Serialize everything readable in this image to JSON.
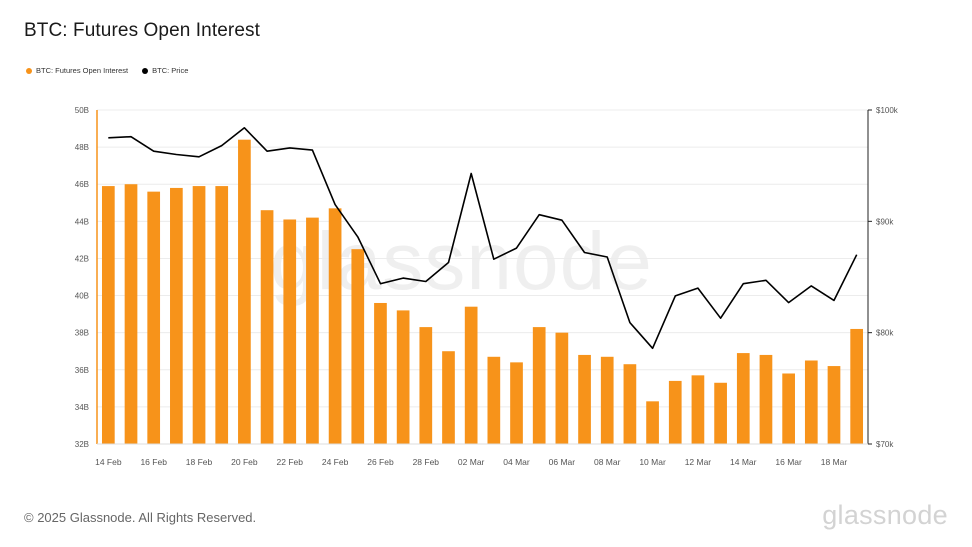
{
  "title": "BTC: Futures Open Interest",
  "legend": [
    {
      "label": "BTC: Futures Open Interest",
      "color": "#f7931a"
    },
    {
      "label": "BTC: Price",
      "color": "#000000"
    }
  ],
  "watermark": "glassnode",
  "footer": {
    "copyright": "© 2025 Glassnode. All Rights Reserved.",
    "brand": "glassnode"
  },
  "chart_data": {
    "type": "bar",
    "categories": [
      "14 Feb",
      "15 Feb",
      "16 Feb",
      "17 Feb",
      "18 Feb",
      "19 Feb",
      "20 Feb",
      "21 Feb",
      "22 Feb",
      "23 Feb",
      "24 Feb",
      "25 Feb",
      "26 Feb",
      "27 Feb",
      "28 Feb",
      "01 Mar",
      "02 Mar",
      "03 Mar",
      "04 Mar",
      "05 Mar",
      "06 Mar",
      "07 Mar",
      "08 Mar",
      "09 Mar",
      "10 Mar",
      "11 Mar",
      "12 Mar",
      "13 Mar",
      "14 Mar",
      "15 Mar",
      "16 Mar",
      "17 Mar",
      "18 Mar",
      "19 Mar"
    ],
    "x_tick_labels": [
      "14 Feb",
      "16 Feb",
      "18 Feb",
      "20 Feb",
      "22 Feb",
      "24 Feb",
      "26 Feb",
      "28 Feb",
      "02 Mar",
      "04 Mar",
      "06 Mar",
      "08 Mar",
      "10 Mar",
      "12 Mar",
      "14 Mar",
      "16 Mar",
      "18 Mar"
    ],
    "series": [
      {
        "name": "BTC: Futures Open Interest",
        "type": "bar",
        "axis": "left",
        "color": "#f7931a",
        "values": [
          45.9,
          46.0,
          45.6,
          45.8,
          45.9,
          45.9,
          48.4,
          44.6,
          44.1,
          44.2,
          44.7,
          42.5,
          39.6,
          39.2,
          38.3,
          37.0,
          39.4,
          36.7,
          36.4,
          38.3,
          38.0,
          36.8,
          36.7,
          36.3,
          34.3,
          35.4,
          35.7,
          35.3,
          36.9,
          36.8,
          35.8,
          36.5,
          36.2,
          38.2
        ]
      },
      {
        "name": "BTC: Price",
        "type": "line",
        "axis": "right",
        "color": "#000000",
        "values": [
          97500,
          97600,
          96300,
          96000,
          95800,
          96800,
          98400,
          96300,
          96600,
          96400,
          91500,
          88600,
          84400,
          84900,
          84600,
          86300,
          94300,
          86600,
          87600,
          90600,
          90100,
          87200,
          86800,
          80900,
          78600,
          83300,
          84000,
          81300,
          84400,
          84700,
          82700,
          84200,
          82900,
          87000
        ]
      }
    ],
    "y_left": {
      "min": 32,
      "max": 50,
      "ticks": [
        "32B",
        "34B",
        "36B",
        "38B",
        "40B",
        "42B",
        "44B",
        "46B",
        "48B",
        "50B"
      ]
    },
    "y_right": {
      "min": 70000,
      "max": 100000,
      "ticks": [
        "$70k",
        "$80k",
        "$90k",
        "$100k"
      ]
    },
    "grid": true
  }
}
